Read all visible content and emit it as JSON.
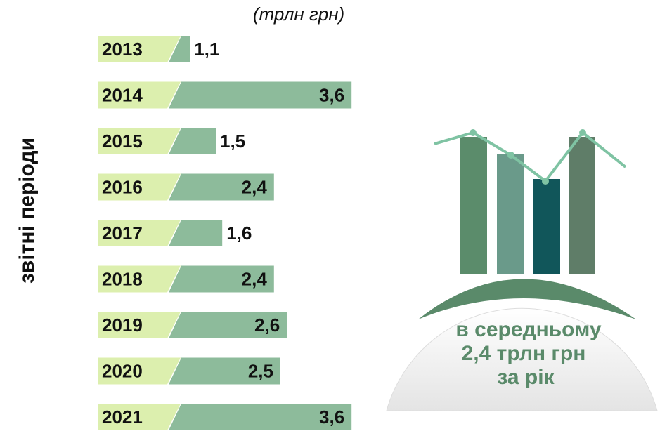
{
  "chart_data": {
    "type": "bar",
    "orientation": "horizontal",
    "subtitle": "(трлн грн)",
    "ylabel": "звітні періоди",
    "categories": [
      "2013",
      "2014",
      "2015",
      "2016",
      "2017",
      "2018",
      "2019",
      "2020",
      "2021"
    ],
    "values": [
      1.1,
      3.6,
      1.5,
      2.4,
      1.6,
      2.4,
      2.6,
      2.5,
      3.6
    ],
    "value_labels": [
      "1,1",
      "3,6",
      "1,5",
      "2,4",
      "1,6",
      "2,4",
      "2,6",
      "2,5",
      "3,6"
    ],
    "xlim": [
      0,
      4
    ],
    "color": "#8dbb9b",
    "category_color": "#dcefae",
    "annotation": [
      "в середньому",
      "2,4 трлн грн",
      "за рік"
    ]
  }
}
